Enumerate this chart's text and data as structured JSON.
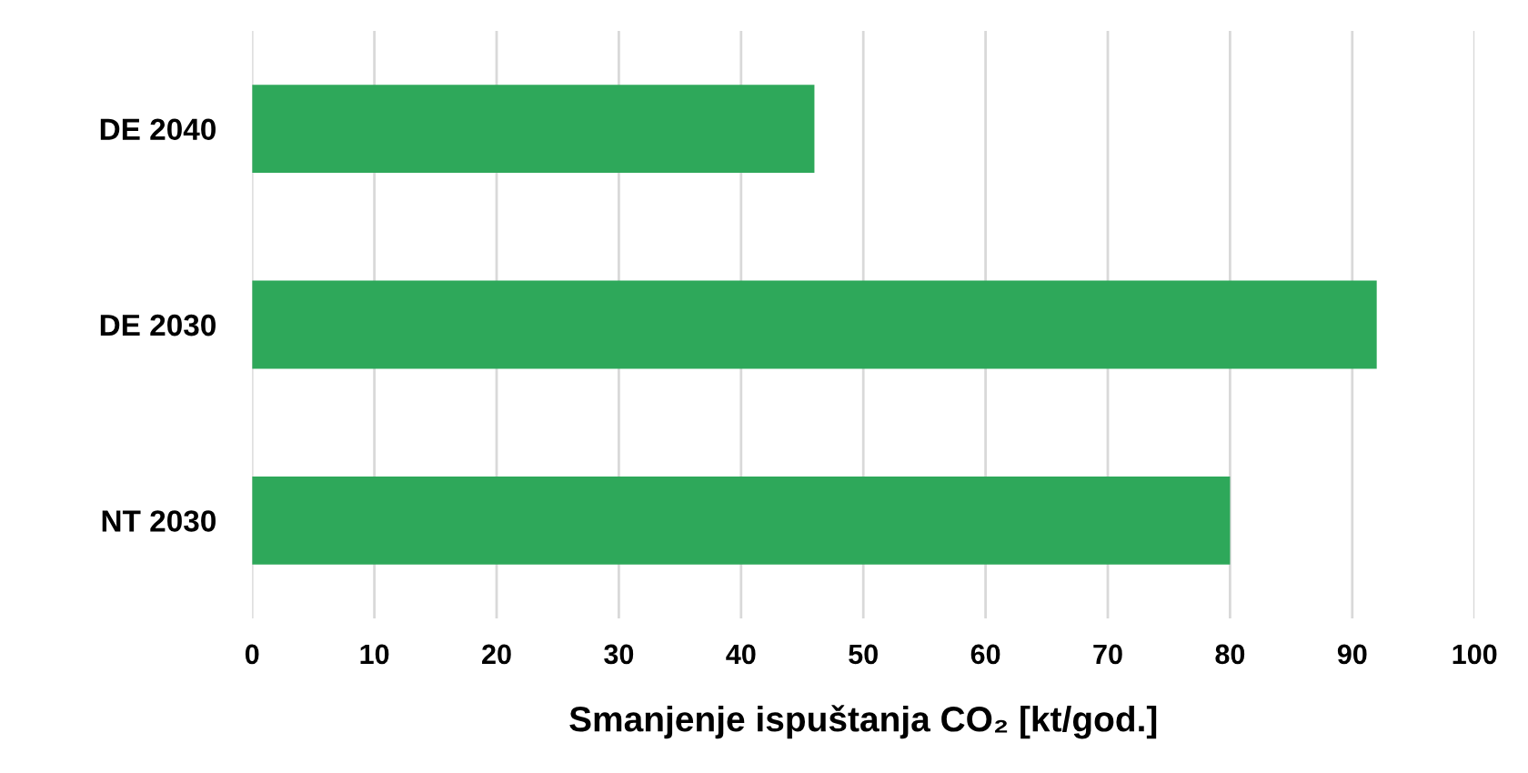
{
  "chart_data": {
    "type": "bar",
    "orientation": "horizontal",
    "xlabel": "Smanjenje ispuštanja CO₂ [kt/god.]",
    "categories": [
      "DE 2040",
      "DE 2030",
      "NT 2030"
    ],
    "values": [
      46,
      92,
      80
    ],
    "color": "#2ea85a",
    "xlim": [
      0,
      100
    ],
    "xticks": [
      0,
      10,
      20,
      30,
      40,
      50,
      60,
      70,
      80,
      90,
      100
    ],
    "grid": "x"
  }
}
